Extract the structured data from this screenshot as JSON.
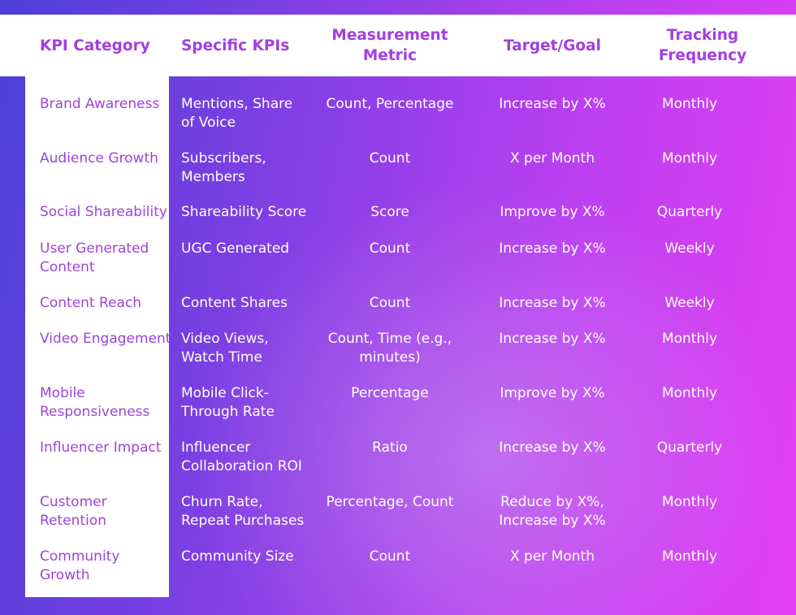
{
  "headers": {
    "category": "KPI Category",
    "kpis": "Specific KPIs",
    "metric": "Measurement Metric",
    "target": "Target/Goal",
    "frequency": "Tracking Frequency"
  },
  "rows": [
    {
      "category": "Brand Awareness",
      "kpis": "Mentions, Share of Voice",
      "metric": "Count, Percentage",
      "target": "Increase by X%",
      "frequency": "Monthly"
    },
    {
      "category": "Audience Growth",
      "kpis": "Subscribers, Members",
      "metric": "Count",
      "target": "X per Month",
      "frequency": "Monthly"
    },
    {
      "category": "Social Shareability",
      "kpis": "Shareability Score",
      "metric": "Score",
      "target": "Improve by X%",
      "frequency": "Quarterly"
    },
    {
      "category": "User Generated Content",
      "kpis": "UGC Generated",
      "metric": "Count",
      "target": "Increase by X%",
      "frequency": "Weekly"
    },
    {
      "category": "Content Reach",
      "kpis": "Content Shares",
      "metric": "Count",
      "target": "Increase by X%",
      "frequency": "Weekly"
    },
    {
      "category": "Video Engagement",
      "kpis": "Video Views, Watch Time",
      "metric": "Count, Time (e.g., minutes)",
      "target": "Increase by X%",
      "frequency": "Monthly"
    },
    {
      "category": "Mobile Responsiveness",
      "kpis": "Mobile Click-Through Rate",
      "metric": "Percentage",
      "target": "Improve by X%",
      "frequency": "Monthly"
    },
    {
      "category": "Influencer Impact",
      "kpis": "Influencer Collaboration ROI",
      "metric": "Ratio",
      "target": "Increase by X%",
      "frequency": "Quarterly"
    },
    {
      "category": "Customer Retention",
      "kpis": "Churn Rate, Repeat Purchases",
      "metric": "Percentage, Count",
      "target": "Reduce by X%, Increase by X%",
      "frequency": "Monthly"
    },
    {
      "category": "Community Growth",
      "kpis": "Community Size",
      "metric": "Count",
      "target": "X per Month",
      "frequency": "Monthly"
    }
  ]
}
